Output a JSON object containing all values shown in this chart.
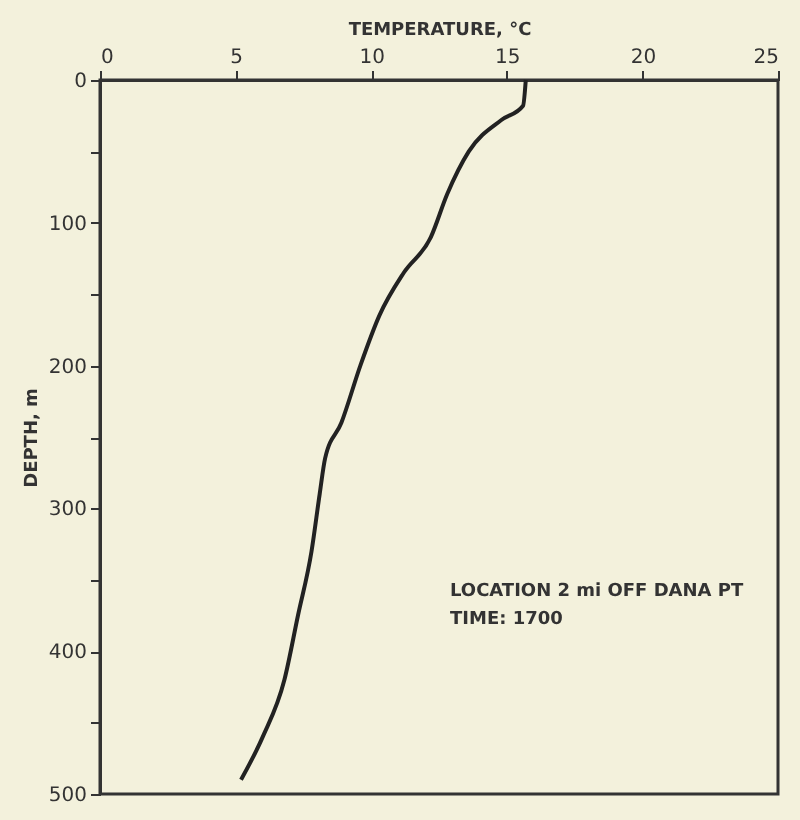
{
  "chart_data": {
    "type": "line",
    "xlabel": "TEMPERATURE, °C",
    "ylabel": "DEPTH, m",
    "orientation": "horizontal",
    "series": [
      {
        "color": "#222222",
        "values": [
          15.7,
          15.6,
          14.8,
          13.6,
          12.8,
          12.2,
          11.2,
          10.3,
          9.6,
          8.9,
          8.3,
          8.1,
          7.8,
          7.3,
          6.8,
          6.0,
          5.2
        ],
        "x": [
          0,
          18,
          28,
          50,
          80,
          110,
          135,
          165,
          200,
          240,
          265,
          290,
          330,
          375,
          420,
          460,
          490
        ]
      }
    ],
    "xlim": [
      0,
      25
    ],
    "xticks": [
      0,
      5,
      10,
      15,
      20,
      25
    ],
    "ylim": [
      500,
      0
    ],
    "yticks": [
      0,
      {
        "value": 50,
        "label": null
      },
      100,
      {
        "value": 150,
        "label": null
      },
      200,
      {
        "value": 250,
        "label": null
      },
      300,
      {
        "value": 350,
        "label": null
      },
      400,
      {
        "value": 450,
        "label": null
      },
      500
    ],
    "grid": false,
    "marker": "none",
    "line_style": "solid",
    "annotations": [
      "LOCATION  2 mi OFF DANA PT",
      "TIME: 1700"
    ]
  }
}
